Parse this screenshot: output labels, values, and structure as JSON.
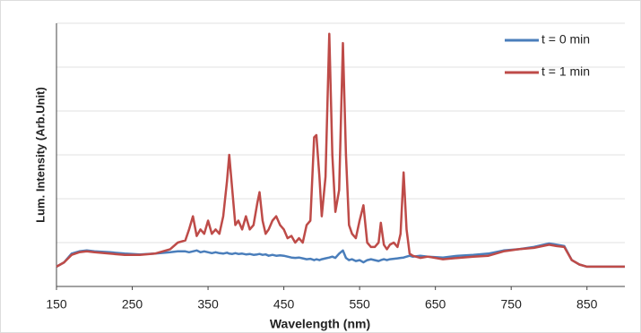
{
  "chart_data": {
    "type": "line",
    "xlabel": "Wavelength (nm)",
    "ylabel": "Lum. Intensity (Arb.Unit)",
    "x": [
      150,
      160,
      170,
      180,
      190,
      200,
      220,
      240,
      260,
      280,
      300,
      310,
      320,
      325,
      330,
      335,
      340,
      345,
      350,
      355,
      360,
      365,
      370,
      375,
      378,
      382,
      386,
      390,
      395,
      400,
      405,
      410,
      415,
      418,
      422,
      426,
      430,
      435,
      440,
      445,
      450,
      455,
      460,
      465,
      470,
      475,
      480,
      485,
      490,
      493,
      497,
      500,
      505,
      510,
      514,
      518,
      523,
      528,
      532,
      536,
      540,
      545,
      550,
      555,
      560,
      565,
      570,
      575,
      578,
      582,
      586,
      590,
      595,
      600,
      604,
      608,
      612,
      616,
      620,
      630,
      640,
      660,
      680,
      700,
      720,
      740,
      760,
      780,
      800,
      810,
      820,
      830,
      840,
      850,
      870,
      900
    ],
    "series": [
      {
        "name": "t = 0 min",
        "color": "#4a7ebb",
        "values": [
          0.45,
          0.55,
          0.75,
          0.8,
          0.82,
          0.8,
          0.78,
          0.75,
          0.73,
          0.75,
          0.78,
          0.8,
          0.8,
          0.78,
          0.8,
          0.82,
          0.78,
          0.8,
          0.78,
          0.76,
          0.78,
          0.76,
          0.75,
          0.77,
          0.75,
          0.74,
          0.76,
          0.74,
          0.75,
          0.73,
          0.74,
          0.72,
          0.73,
          0.74,
          0.72,
          0.73,
          0.7,
          0.72,
          0.7,
          0.71,
          0.7,
          0.68,
          0.66,
          0.65,
          0.66,
          0.64,
          0.62,
          0.63,
          0.6,
          0.62,
          0.6,
          0.62,
          0.64,
          0.66,
          0.68,
          0.65,
          0.75,
          0.82,
          0.65,
          0.6,
          0.62,
          0.58,
          0.6,
          0.55,
          0.6,
          0.62,
          0.6,
          0.58,
          0.6,
          0.62,
          0.6,
          0.62,
          0.63,
          0.64,
          0.65,
          0.66,
          0.68,
          0.7,
          0.68,
          0.7,
          0.68,
          0.66,
          0.7,
          0.72,
          0.75,
          0.82,
          0.85,
          0.9,
          0.98,
          0.95,
          0.92,
          0.6,
          0.5,
          0.45,
          0.45,
          0.45
        ]
      },
      {
        "name": "t = 1 min",
        "color": "#be4b48",
        "values": [
          0.45,
          0.55,
          0.72,
          0.78,
          0.8,
          0.78,
          0.75,
          0.72,
          0.72,
          0.75,
          0.85,
          1.0,
          1.05,
          1.3,
          1.6,
          1.15,
          1.3,
          1.2,
          1.5,
          1.2,
          1.3,
          1.2,
          1.6,
          2.4,
          3.0,
          2.2,
          1.4,
          1.5,
          1.3,
          1.6,
          1.3,
          1.4,
          1.9,
          2.15,
          1.5,
          1.2,
          1.3,
          1.5,
          1.6,
          1.4,
          1.3,
          1.1,
          1.15,
          1.0,
          1.1,
          1.0,
          1.4,
          1.5,
          3.4,
          3.45,
          2.5,
          1.6,
          2.5,
          5.76,
          3.0,
          1.7,
          2.2,
          5.55,
          3.0,
          1.4,
          1.2,
          1.1,
          1.5,
          1.85,
          1.0,
          0.9,
          0.9,
          1.0,
          1.45,
          0.95,
          0.85,
          0.95,
          1.0,
          0.9,
          1.2,
          2.6,
          1.3,
          0.75,
          0.7,
          0.65,
          0.68,
          0.62,
          0.65,
          0.68,
          0.7,
          0.8,
          0.85,
          0.88,
          0.95,
          0.92,
          0.9,
          0.6,
          0.5,
          0.45,
          0.45,
          0.45
        ]
      }
    ],
    "xlim": [
      150,
      900
    ],
    "xticks": [
      150,
      250,
      350,
      450,
      550,
      650,
      750,
      850
    ],
    "ylim": [
      0,
      6
    ],
    "yticks": [
      0,
      1,
      2,
      3,
      4,
      5,
      6
    ],
    "grid": true,
    "legend": "top-right"
  }
}
